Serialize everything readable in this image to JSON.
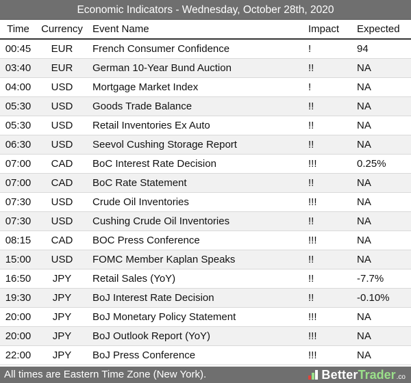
{
  "title": "Economic Indicators - Wednesday, October 28th, 2020",
  "headers": {
    "time": "Time",
    "currency": "Currency",
    "event": "Event Name",
    "impact": "Impact",
    "expected": "Expected"
  },
  "rows": [
    {
      "time": "00:45",
      "currency": "EUR",
      "event": "French Consumer Confidence",
      "impact": "!",
      "expected": "94"
    },
    {
      "time": "03:40",
      "currency": "EUR",
      "event": "German 10-Year Bund Auction",
      "impact": "!!",
      "expected": "NA"
    },
    {
      "time": "04:00",
      "currency": "USD",
      "event": "Mortgage Market Index",
      "impact": "!",
      "expected": "NA"
    },
    {
      "time": "05:30",
      "currency": "USD",
      "event": "Goods Trade Balance",
      "impact": "!!",
      "expected": "NA"
    },
    {
      "time": "05:30",
      "currency": "USD",
      "event": "Retail Inventories Ex Auto",
      "impact": "!!",
      "expected": "NA"
    },
    {
      "time": "06:30",
      "currency": "USD",
      "event": "Seevol Cushing Storage Report",
      "impact": "!!",
      "expected": "NA"
    },
    {
      "time": "07:00",
      "currency": "CAD",
      "event": "BoC Interest Rate Decision",
      "impact": "!!!",
      "expected": "0.25%"
    },
    {
      "time": "07:00",
      "currency": "CAD",
      "event": "BoC Rate Statement",
      "impact": "!!",
      "expected": "NA"
    },
    {
      "time": "07:30",
      "currency": "USD",
      "event": "Crude Oil Inventories",
      "impact": "!!!",
      "expected": "NA"
    },
    {
      "time": "07:30",
      "currency": "USD",
      "event": "Cushing Crude Oil Inventories",
      "impact": "!!",
      "expected": "NA"
    },
    {
      "time": "08:15",
      "currency": "CAD",
      "event": "BOC Press Conference",
      "impact": "!!!",
      "expected": "NA"
    },
    {
      "time": "15:00",
      "currency": "USD",
      "event": "FOMC Member Kaplan Speaks",
      "impact": "!!",
      "expected": "NA"
    },
    {
      "time": "16:50",
      "currency": "JPY",
      "event": "Retail Sales (YoY)",
      "impact": "!!",
      "expected": "-7.7%"
    },
    {
      "time": "19:30",
      "currency": "JPY",
      "event": "BoJ Interest Rate Decision",
      "impact": "!!",
      "expected": "-0.10%"
    },
    {
      "time": "20:00",
      "currency": "JPY",
      "event": "BoJ Monetary Policy Statement",
      "impact": "!!!",
      "expected": "NA"
    },
    {
      "time": "20:00",
      "currency": "JPY",
      "event": "BoJ Outlook Report (YoY)",
      "impact": "!!!",
      "expected": "NA"
    },
    {
      "time": "22:00",
      "currency": "JPY",
      "event": "BoJ Press Conference",
      "impact": "!!!",
      "expected": "NA"
    }
  ],
  "footer": {
    "note": "All times are Eastern Time Zone (New York).",
    "brand_better": "Better",
    "brand_trader": "Trader",
    "brand_co": ".co",
    "brand_icon": "bettertrader-logo-icon"
  },
  "colors": {
    "bar_bg": "#6f6f6f",
    "row_alt": "#f1f1f1",
    "brand_green": "#9be08a",
    "logo_red": "#e0443a"
  }
}
